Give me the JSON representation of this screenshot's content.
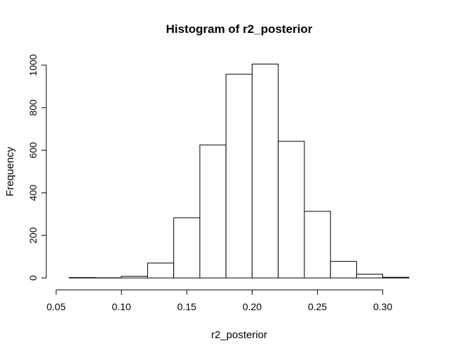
{
  "chart_data": {
    "type": "bar",
    "title": "Histogram of r2_posterior",
    "xlabel": "r2_posterior",
    "ylabel": "Frequency",
    "bins": [
      {
        "from": 0.06,
        "to": 0.08,
        "count": 2
      },
      {
        "from": 0.08,
        "to": 0.1,
        "count": 1
      },
      {
        "from": 0.1,
        "to": 0.12,
        "count": 8
      },
      {
        "from": 0.12,
        "to": 0.14,
        "count": 70
      },
      {
        "from": 0.14,
        "to": 0.16,
        "count": 283
      },
      {
        "from": 0.16,
        "to": 0.18,
        "count": 625
      },
      {
        "from": 0.18,
        "to": 0.2,
        "count": 957
      },
      {
        "from": 0.2,
        "to": 0.22,
        "count": 1005
      },
      {
        "from": 0.22,
        "to": 0.24,
        "count": 642
      },
      {
        "from": 0.24,
        "to": 0.26,
        "count": 313
      },
      {
        "from": 0.26,
        "to": 0.28,
        "count": 78
      },
      {
        "from": 0.28,
        "to": 0.3,
        "count": 18
      },
      {
        "from": 0.3,
        "to": 0.32,
        "count": 3
      }
    ],
    "xticks": [
      "0.05",
      "0.10",
      "0.15",
      "0.20",
      "0.25",
      "0.30"
    ],
    "yticks": [
      "0",
      "200",
      "400",
      "600",
      "800",
      "1000"
    ],
    "xlim": [
      0.05,
      0.3
    ],
    "ylim": [
      0,
      1000
    ],
    "grid": false,
    "bar_fill": "#ffffff",
    "bar_stroke": "#000000"
  }
}
